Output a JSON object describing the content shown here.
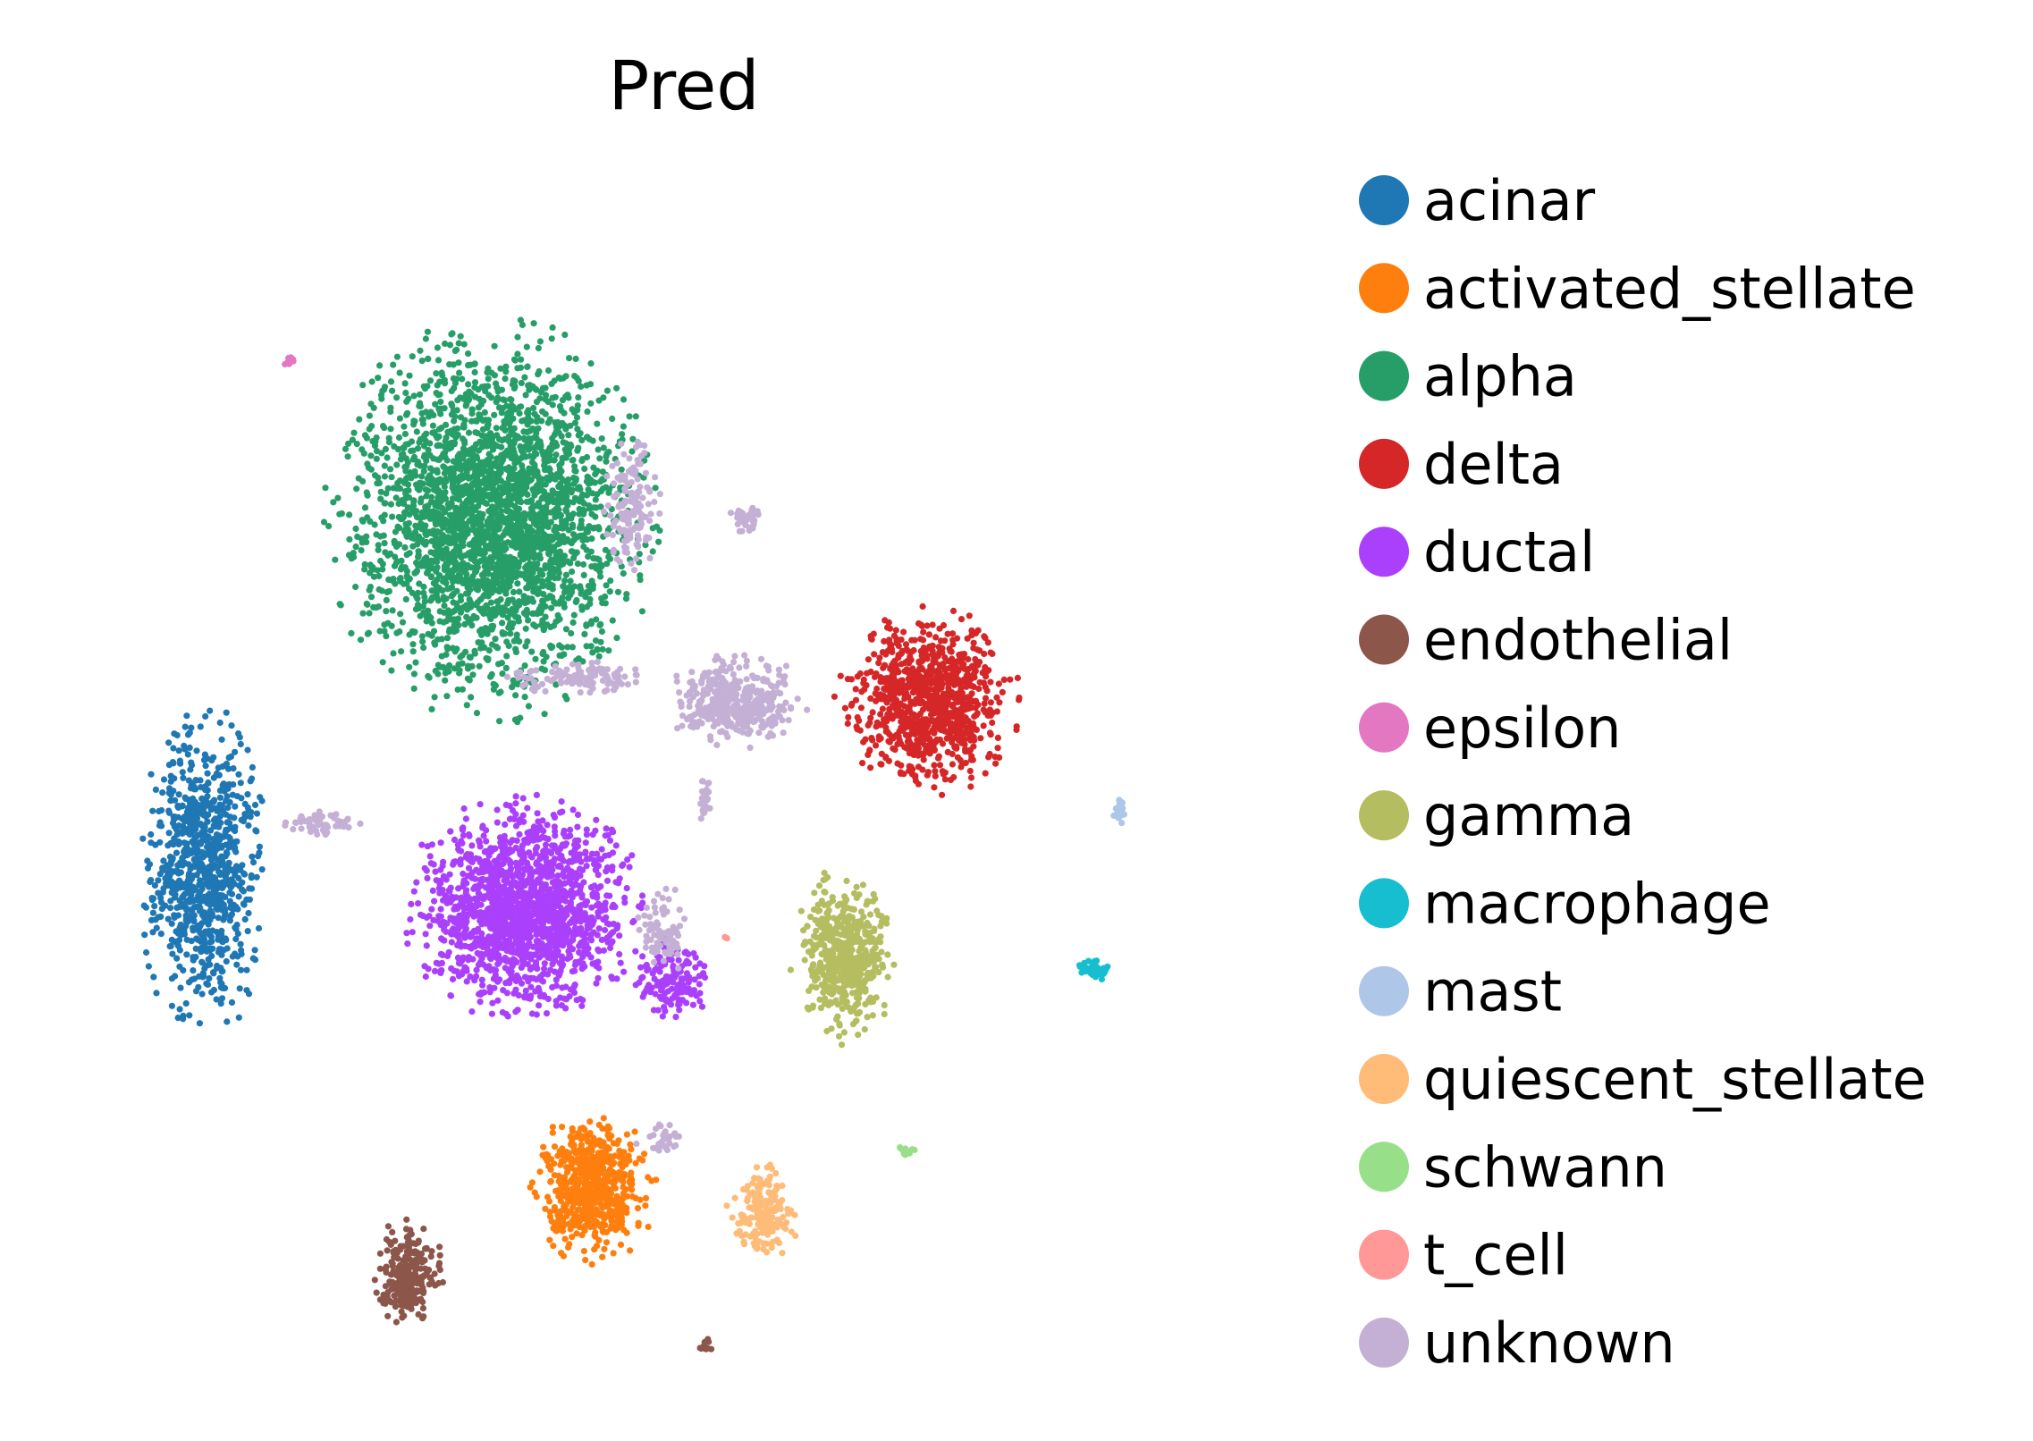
{
  "chart_data": {
    "type": "scatter",
    "title": "Pred",
    "xlabel": "",
    "ylabel": "",
    "axes_visible": false,
    "grid": false,
    "legend_position": "right",
    "xlim": [
      0,
      100
    ],
    "ylim": [
      0,
      100
    ],
    "series": [
      {
        "name": "acinar",
        "color": "#1f77b4",
        "clusters": [
          {
            "cx": 10,
            "cy": 43,
            "rx": 6.5,
            "ry": 14,
            "n": 900
          }
        ]
      },
      {
        "name": "activated_stellate",
        "color": "#ff7f0e",
        "clusters": [
          {
            "cx": 46.5,
            "cy": 17,
            "rx": 6,
            "ry": 6.5,
            "n": 600
          }
        ]
      },
      {
        "name": "alpha",
        "color": "#279e68",
        "clusters": [
          {
            "cx": 37,
            "cy": 72,
            "rx": 16,
            "ry": 17,
            "n": 2800
          }
        ]
      },
      {
        "name": "delta",
        "color": "#d62728",
        "clusters": [
          {
            "cx": 78,
            "cy": 57,
            "rx": 9,
            "ry": 8,
            "n": 900
          }
        ]
      },
      {
        "name": "ductal",
        "color": "#aa40fc",
        "clusters": [
          {
            "cx": 40,
            "cy": 40,
            "rx": 11.5,
            "ry": 9.5,
            "n": 1700
          },
          {
            "cx": 54,
            "cy": 34,
            "rx": 4,
            "ry": 3.5,
            "n": 150
          }
        ]
      },
      {
        "name": "endothelial",
        "color": "#8c564b",
        "clusters": [
          {
            "cx": 29,
            "cy": 10,
            "rx": 3.5,
            "ry": 4.5,
            "n": 250
          },
          {
            "cx": 57,
            "cy": 4,
            "rx": 1,
            "ry": 0.6,
            "n": 10
          }
        ]
      },
      {
        "name": "epsilon",
        "color": "#e377c2",
        "clusters": [
          {
            "cx": 18,
            "cy": 85,
            "rx": 0.8,
            "ry": 0.6,
            "n": 10
          }
        ]
      },
      {
        "name": "gamma",
        "color": "#b5bd61",
        "clusters": [
          {
            "cx": 70,
            "cy": 36,
            "rx": 5,
            "ry": 7.5,
            "n": 500
          }
        ]
      },
      {
        "name": "macrophage",
        "color": "#17becf",
        "clusters": [
          {
            "cx": 93.5,
            "cy": 35,
            "rx": 1.8,
            "ry": 1,
            "n": 40
          }
        ]
      },
      {
        "name": "mast",
        "color": "#aec7e8",
        "clusters": [
          {
            "cx": 96,
            "cy": 48,
            "rx": 0.7,
            "ry": 1.3,
            "n": 25
          }
        ]
      },
      {
        "name": "quiescent_stellate",
        "color": "#ffbb78",
        "clusters": [
          {
            "cx": 62.5,
            "cy": 15,
            "rx": 3.5,
            "ry": 4.5,
            "n": 170
          }
        ]
      },
      {
        "name": "schwann",
        "color": "#98df8a",
        "clusters": [
          {
            "cx": 76,
            "cy": 20,
            "rx": 0.9,
            "ry": 0.6,
            "n": 12
          }
        ]
      },
      {
        "name": "t_cell",
        "color": "#ff9896",
        "clusters": [
          {
            "cx": 59,
            "cy": 37.5,
            "rx": 0.2,
            "ry": 0.2,
            "n": 3
          }
        ]
      },
      {
        "name": "unknown",
        "color": "#c5b0d5",
        "clusters": [
          {
            "cx": 60,
            "cy": 57,
            "rx": 7,
            "ry": 4,
            "n": 400
          },
          {
            "cx": 45,
            "cy": 59,
            "rx": 7,
            "ry": 1.5,
            "n": 120
          },
          {
            "cx": 50,
            "cy": 73,
            "rx": 3,
            "ry": 6,
            "n": 140
          },
          {
            "cx": 61,
            "cy": 72,
            "rx": 2,
            "ry": 1.2,
            "n": 40
          },
          {
            "cx": 21,
            "cy": 47,
            "rx": 4,
            "ry": 1.5,
            "n": 60
          },
          {
            "cx": 53,
            "cy": 38,
            "rx": 3,
            "ry": 4,
            "n": 90
          },
          {
            "cx": 57,
            "cy": 49,
            "rx": 0.6,
            "ry": 2,
            "n": 30
          },
          {
            "cx": 53,
            "cy": 21,
            "rx": 2.5,
            "ry": 1.5,
            "n": 30
          }
        ]
      }
    ]
  }
}
